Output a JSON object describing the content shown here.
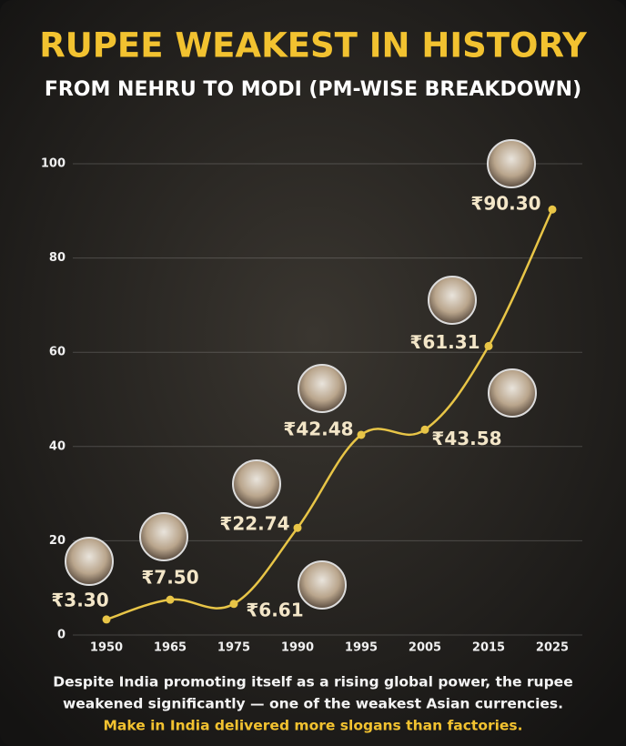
{
  "chart_data": {
    "type": "line",
    "title": "RUPEE WEAKEST IN HISTORY",
    "subtitle": "FROM NEHRU TO MODI (PM-WISE BREAKDOWN)",
    "categories": [
      "1950",
      "1965",
      "1975",
      "1990",
      "1995",
      "2005",
      "2015",
      "2025"
    ],
    "values": [
      3.3,
      7.5,
      6.61,
      22.74,
      42.48,
      43.58,
      61.31,
      90.3
    ],
    "value_labels": [
      "₹3.30",
      "₹7.50",
      "₹6.61",
      "₹22.74",
      "₹42.48",
      "₹43.58",
      "₹61.31",
      "₹90.30"
    ],
    "color": "#e8c547",
    "ylim": [
      0,
      100
    ],
    "yticks": [
      0,
      20,
      40,
      60,
      80,
      100
    ],
    "grid": true,
    "annotations": [
      "Despite India promoting itself as a rising global power, the rupee",
      "weakened significantly — one of the weakest Asian currencies.",
      "Make in India delivered more slogans than factories."
    ]
  }
}
